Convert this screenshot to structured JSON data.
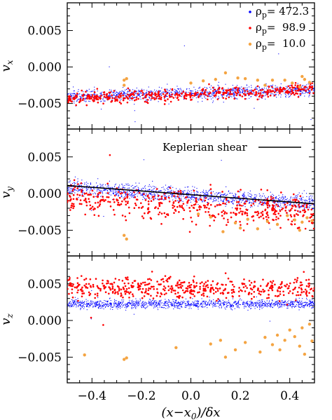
{
  "chart_data": [
    {
      "type": "scatter",
      "panel": "top",
      "ylabel": "v_x",
      "xlim": [
        -0.5,
        0.5
      ],
      "ylim": [
        -0.0085,
        0.0088
      ],
      "xticks": [
        -0.4,
        -0.2,
        0.0,
        0.2,
        0.4
      ],
      "yticks": [
        0.005,
        0.0,
        -0.005
      ],
      "ytick_labels": [
        "0.005",
        "0.000",
        "−0.005"
      ],
      "legend": {
        "placement": "top-right",
        "entries": [
          {
            "prefix": "ρ",
            "sub": "p",
            "value": "= 472.3",
            "color": "#0000ff"
          },
          {
            "prefix": "ρ",
            "sub": "p",
            "value": "=  98.9",
            "color": "#ff0000"
          },
          {
            "prefix": "ρ",
            "sub": "p",
            "value": "=  10.0",
            "color": "#f4a442"
          }
        ]
      },
      "series": [
        {
          "name": "ρp= 472.3",
          "color": "#0000ff",
          "trend": [
            [
              -0.5,
              -0.004
            ],
            [
              0.5,
              -0.0031
            ]
          ],
          "spread": 0.0004,
          "count": 1200
        },
        {
          "name": "ρp= 98.9",
          "color": "#ff0000",
          "trend": [
            [
              -0.5,
              -0.0043
            ],
            [
              0.5,
              -0.0031
            ]
          ],
          "spread": 0.0004,
          "count": 450
        },
        {
          "name": "ρp= 10.0",
          "color": "#f4a442",
          "points": [
            [
              -0.27,
              -0.0018
            ],
            [
              -0.26,
              -0.0016
            ],
            [
              -0.27,
              -0.0025
            ],
            [
              0.0,
              -0.0022
            ],
            [
              0.05,
              -0.0019
            ],
            [
              0.1,
              -0.0017
            ],
            [
              0.14,
              -0.0008
            ],
            [
              0.19,
              -0.0015
            ],
            [
              0.22,
              -0.0016
            ],
            [
              0.27,
              -0.0018
            ],
            [
              0.33,
              -0.0018
            ],
            [
              0.38,
              -0.0018
            ],
            [
              0.41,
              -0.0022
            ],
            [
              0.45,
              -0.0013
            ],
            [
              0.46,
              -0.0017
            ],
            [
              0.48,
              -0.0021
            ],
            [
              0.3,
              -0.0025
            ],
            [
              0.44,
              -0.0027
            ]
          ]
        }
      ]
    },
    {
      "type": "scatter",
      "panel": "middle",
      "ylabel": "v_y",
      "xlim": [
        -0.5,
        0.5
      ],
      "ylim": [
        -0.0085,
        0.0088
      ],
      "yticks": [
        0.005,
        0.0,
        -0.005
      ],
      "ytick_labels": [
        "0.005",
        "0.000",
        "−0.005"
      ],
      "annotation": "Keplerian shear",
      "shear_line": [
        [
          -0.5,
          0.0011
        ],
        [
          0.5,
          -0.0014
        ]
      ],
      "series": [
        {
          "name": "ρp= 472.3",
          "color": "#0000ff",
          "trend": [
            [
              -0.5,
              0.0009
            ],
            [
              0.5,
              -0.0013
            ]
          ],
          "spread": 0.0005,
          "count": 1300
        },
        {
          "name": "ρp= 98.9",
          "color": "#ff0000",
          "trend": [
            [
              -0.5,
              -0.0006
            ],
            [
              0.5,
              -0.0027
            ]
          ],
          "spread": 0.001,
          "count": 500
        },
        {
          "name": "ρp= 10.0",
          "color": "#f4a442",
          "points": [
            [
              -0.27,
              -0.0057
            ],
            [
              -0.26,
              -0.0062
            ],
            [
              0.03,
              -0.0028
            ],
            [
              0.08,
              -0.0032
            ],
            [
              0.13,
              -0.0052
            ],
            [
              0.18,
              -0.004
            ],
            [
              0.2,
              -0.0047
            ],
            [
              0.23,
              -0.0035
            ],
            [
              0.27,
              -0.0048
            ],
            [
              0.31,
              -0.0038
            ],
            [
              0.35,
              -0.0042
            ],
            [
              0.39,
              -0.003
            ],
            [
              0.42,
              -0.0036
            ],
            [
              0.45,
              -0.0039
            ],
            [
              0.47,
              -0.0033
            ],
            [
              0.49,
              -0.0037
            ],
            [
              0.44,
              -0.005
            ]
          ]
        }
      ]
    },
    {
      "type": "scatter",
      "panel": "bottom",
      "ylabel": "v_z",
      "xlabel": "(x−x0)/δx",
      "xlim": [
        -0.5,
        0.5
      ],
      "ylim": [
        -0.0085,
        0.0088
      ],
      "xticks": [
        -0.4,
        -0.2,
        0.0,
        0.2,
        0.4
      ],
      "xtick_labels": [
        "−0.4",
        "−0.2",
        "0.0",
        "0.2",
        "0.4"
      ],
      "yticks": [
        0.005,
        0.0,
        -0.005
      ],
      "ytick_labels": [
        "0.005",
        "0.000",
        "−0.005"
      ],
      "series": [
        {
          "name": "ρp= 472.3",
          "color": "#0000ff",
          "trend": [
            [
              -0.5,
              0.0023
            ],
            [
              0.5,
              0.0023
            ]
          ],
          "spread": 0.0003,
          "count": 1300
        },
        {
          "name": "ρp= 98.9",
          "color": "#ff0000",
          "trend": [
            [
              -0.5,
              0.0045
            ],
            [
              0.5,
              0.0043
            ]
          ],
          "spread": 0.0007,
          "count": 500
        },
        {
          "name": "ρp= 10.0",
          "color": "#f4a442",
          "points": [
            [
              -0.43,
              -0.0047
            ],
            [
              -0.27,
              -0.0053
            ],
            [
              -0.26,
              -0.0051
            ],
            [
              -0.06,
              -0.0037
            ],
            [
              0.08,
              -0.0032
            ],
            [
              0.12,
              -0.0027
            ],
            [
              0.14,
              -0.005
            ],
            [
              0.18,
              -0.004
            ],
            [
              0.22,
              -0.003
            ],
            [
              0.28,
              -0.0043
            ],
            [
              0.3,
              -0.0023
            ],
            [
              0.33,
              -0.0033
            ],
            [
              0.35,
              -0.002
            ],
            [
              0.38,
              -0.0027
            ],
            [
              0.4,
              -0.0013
            ],
            [
              0.42,
              -0.0022
            ],
            [
              0.44,
              -0.0035
            ],
            [
              0.45,
              -0.001
            ],
            [
              0.46,
              -0.0046
            ],
            [
              0.48,
              -0.0005
            ],
            [
              0.49,
              -0.0028
            ],
            [
              0.36,
              -0.004
            ]
          ]
        }
      ]
    }
  ]
}
